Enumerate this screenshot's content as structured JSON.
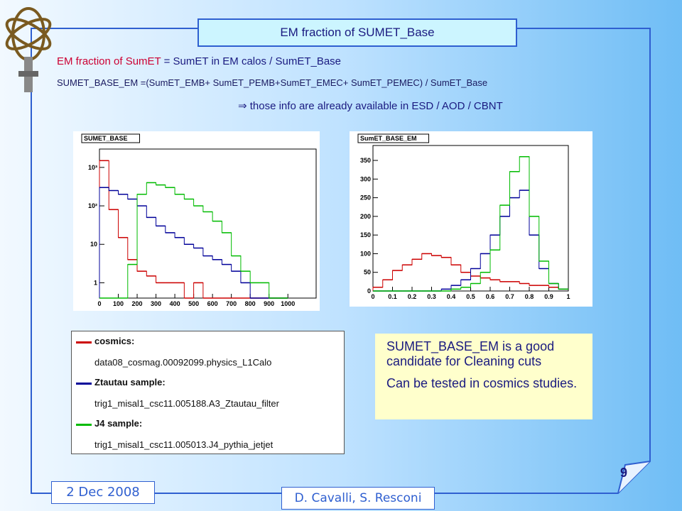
{
  "header": {
    "title": "EM fraction of SUMET_Base"
  },
  "body": {
    "line1_prefix": "EM fraction of  SumET",
    "line1_rest": " = SumET in EM calos / SumET_Base",
    "line2": "SUMET_BASE_EM =(SumET_EMB+ SumET_PEMB+SumET_EMEC+ SumET_PEMEC) / SumET_Base",
    "line3": "⇒  those info are already available in  ESD / AOD / CBNT"
  },
  "chart_data": [
    {
      "type": "histogram",
      "title": "SUMET_BASE",
      "log_y": true,
      "xlim": [
        0,
        1150
      ],
      "xticks": [
        0,
        100,
        200,
        300,
        400,
        500,
        600,
        700,
        800,
        900,
        1000
      ],
      "ylim": [
        0.4,
        3000
      ],
      "yticks": [
        1,
        10,
        {
          "value": 100,
          "label": "10²"
        },
        {
          "value": 1000,
          "label": "10³"
        }
      ],
      "bins": [
        0,
        50,
        100,
        150,
        200,
        250,
        300,
        350,
        400,
        450,
        500,
        550,
        600,
        650,
        700,
        750,
        800,
        850,
        900,
        950,
        1000
      ],
      "series": [
        {
          "color": "#cc0000",
          "values": [
            1500,
            80,
            15,
            4,
            2,
            1.5,
            1,
            1,
            1,
            0,
            1,
            0,
            0,
            0,
            0,
            0,
            0,
            0,
            0,
            0
          ]
        },
        {
          "color": "#000099",
          "values": [
            300,
            250,
            200,
            150,
            100,
            50,
            30,
            20,
            15,
            10,
            8,
            5,
            4,
            3,
            2,
            1,
            0,
            0,
            0,
            0
          ]
        },
        {
          "color": "#00bb00",
          "values": [
            0,
            0,
            0,
            3,
            200,
            400,
            350,
            300,
            200,
            150,
            100,
            70,
            40,
            20,
            5,
            2,
            1,
            1,
            0,
            0
          ]
        }
      ]
    },
    {
      "type": "histogram",
      "title": "SumET_BASE_EM",
      "log_y": false,
      "xlim": [
        0,
        1
      ],
      "xticks": [
        0,
        0.1,
        0.2,
        0.3,
        0.4,
        0.5,
        0.6,
        0.7,
        0.8,
        0.9,
        1
      ],
      "ylim": [
        0,
        390
      ],
      "yticks": [
        0,
        50,
        100,
        150,
        200,
        250,
        300,
        350
      ],
      "bins": [
        0,
        0.05,
        0.1,
        0.15,
        0.2,
        0.25,
        0.3,
        0.35,
        0.4,
        0.45,
        0.5,
        0.55,
        0.6,
        0.65,
        0.7,
        0.75,
        0.8,
        0.85,
        0.9,
        0.95,
        1
      ],
      "series": [
        {
          "color": "#cc0000",
          "values": [
            10,
            30,
            55,
            70,
            85,
            100,
            95,
            90,
            70,
            50,
            40,
            35,
            30,
            25,
            25,
            20,
            15,
            15,
            10,
            5
          ]
        },
        {
          "color": "#000099",
          "values": [
            0,
            0,
            0,
            0,
            0,
            0,
            0,
            5,
            15,
            30,
            60,
            100,
            150,
            200,
            250,
            270,
            150,
            60,
            20,
            5
          ]
        },
        {
          "color": "#00bb00",
          "values": [
            0,
            0,
            0,
            0,
            0,
            0,
            0,
            0,
            5,
            10,
            20,
            50,
            110,
            230,
            320,
            360,
            200,
            80,
            20,
            5
          ]
        }
      ]
    }
  ],
  "legend": [
    {
      "name": "cosmics:",
      "sample": "data08_cosmag.00092099.physics_L1Calo"
    },
    {
      "name": "Ztautau sample:",
      "sample": "trig1_misal1_csc11.005188.A3_Ztautau_filter"
    },
    {
      "name": "J4 sample:",
      "sample": "trig1_misal1_csc11.005013.J4_pythia_jetjet"
    }
  ],
  "note": [
    "SUMET_BASE_EM is a good candidate for Cleaning cuts",
    "Can be tested in cosmics studies."
  ],
  "footer": {
    "date": "2 Dec 2008",
    "authors": "D. Cavalli, S. Resconi",
    "page": "9"
  }
}
